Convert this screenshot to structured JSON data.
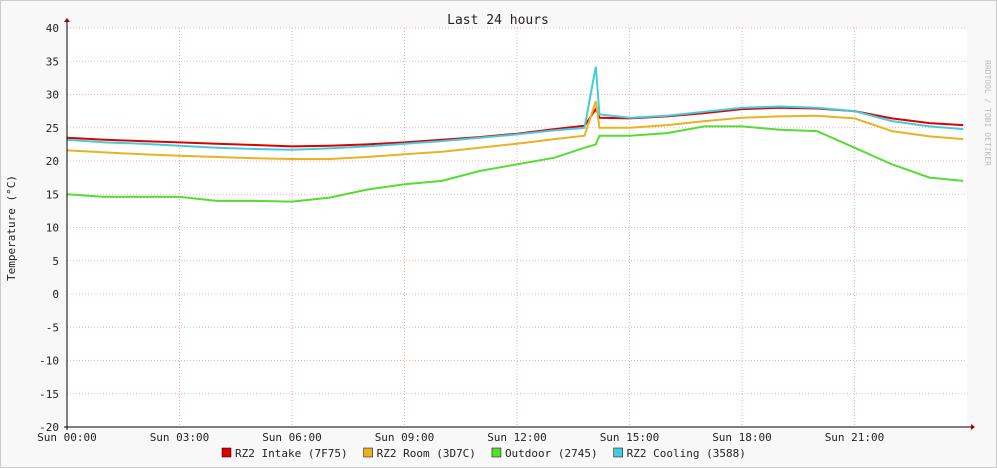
{
  "chart_data": {
    "type": "line",
    "title": "Last 24 hours",
    "y_label": "Temperature (°C)",
    "watermark": "RRDTOOL / TOBI OETIKER",
    "x": [
      0,
      1,
      2,
      3,
      4,
      5,
      6,
      7,
      8,
      9,
      10,
      11,
      12,
      13,
      13.8,
      14.1,
      14.2,
      15,
      16,
      17,
      18,
      19,
      20,
      21,
      22,
      23,
      23.9
    ],
    "xlim": [
      0,
      24
    ],
    "xticks": [
      {
        "value": 0,
        "label": "Sun 00:00"
      },
      {
        "value": 3,
        "label": "Sun 03:00"
      },
      {
        "value": 6,
        "label": "Sun 06:00"
      },
      {
        "value": 9,
        "label": "Sun 09:00"
      },
      {
        "value": 12,
        "label": "Sun 12:00"
      },
      {
        "value": 15,
        "label": "Sun 15:00"
      },
      {
        "value": 18,
        "label": "Sun 18:00"
      },
      {
        "value": 21,
        "label": "Sun 21:00"
      }
    ],
    "ylim": [
      -20,
      40
    ],
    "yticks": [
      -20,
      -15,
      -10,
      -5,
      0,
      5,
      10,
      15,
      20,
      25,
      30,
      35,
      40
    ],
    "grid": true,
    "series": [
      {
        "name": "RZ2 Intake (7F75)",
        "color": "#dd0000",
        "values": [
          23.5,
          23.2,
          23.0,
          22.8,
          22.6,
          22.4,
          22.2,
          22.3,
          22.5,
          22.8,
          23.2,
          23.6,
          24.1,
          24.8,
          25.3,
          27.8,
          26.5,
          26.4,
          26.7,
          27.2,
          27.8,
          28.0,
          27.9,
          27.5,
          26.4,
          25.7,
          25.4
        ]
      },
      {
        "name": "RZ2 Room (3D7C)",
        "color": "#e8b320",
        "values": [
          21.6,
          21.3,
          21.0,
          20.8,
          20.6,
          20.4,
          20.3,
          20.3,
          20.6,
          21.0,
          21.4,
          22.0,
          22.6,
          23.3,
          23.8,
          29.0,
          25.0,
          25.0,
          25.4,
          26.0,
          26.5,
          26.7,
          26.8,
          26.4,
          24.5,
          23.7,
          23.3
        ]
      },
      {
        "name": "Outdoor (2745)",
        "color": "#55dd33",
        "values": [
          15.0,
          14.6,
          14.6,
          14.6,
          14.0,
          14.0,
          13.9,
          14.5,
          15.7,
          16.5,
          17.0,
          18.5,
          19.5,
          20.5,
          22.0,
          22.5,
          23.8,
          23.8,
          24.2,
          25.2,
          25.2,
          24.7,
          24.5,
          22.0,
          19.5,
          17.5,
          17.0
        ]
      },
      {
        "name": "RZ2 Cooling (3588)",
        "color": "#44ccdd",
        "values": [
          23.2,
          22.8,
          22.6,
          22.3,
          22.0,
          21.8,
          21.7,
          21.9,
          22.2,
          22.6,
          23.0,
          23.5,
          24.0,
          24.6,
          25.0,
          34.2,
          27.0,
          26.5,
          26.8,
          27.4,
          28.0,
          28.2,
          28.0,
          27.5,
          26.0,
          25.2,
          24.8
        ]
      }
    ]
  }
}
